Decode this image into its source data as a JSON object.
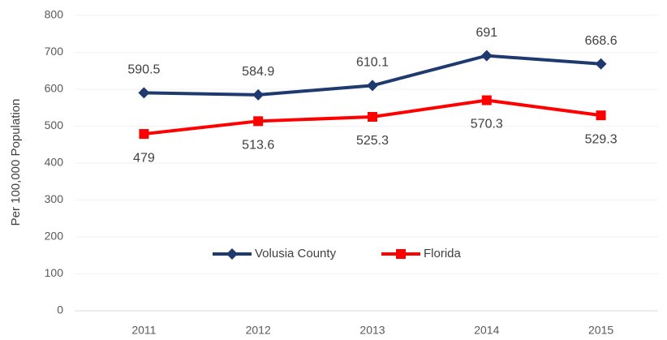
{
  "chart_data": {
    "type": "line",
    "y_label": "Per 100,000 Population",
    "categories": [
      "2011",
      "2012",
      "2013",
      "2014",
      "2015"
    ],
    "series": [
      {
        "name": "Volusia County",
        "color": "#1f3a6e",
        "marker": "diamond",
        "values": [
          590.5,
          584.9,
          610.1,
          691,
          668.6
        ]
      },
      {
        "name": "Florida",
        "color": "#ff0000",
        "marker": "square",
        "values": [
          479,
          513.6,
          525.3,
          570.3,
          529.3
        ]
      }
    ],
    "ylim": [
      0,
      800
    ],
    "yticks": [
      0,
      100,
      200,
      300,
      400,
      500,
      600,
      700,
      800
    ],
    "grid": true,
    "legend": "bottom"
  }
}
